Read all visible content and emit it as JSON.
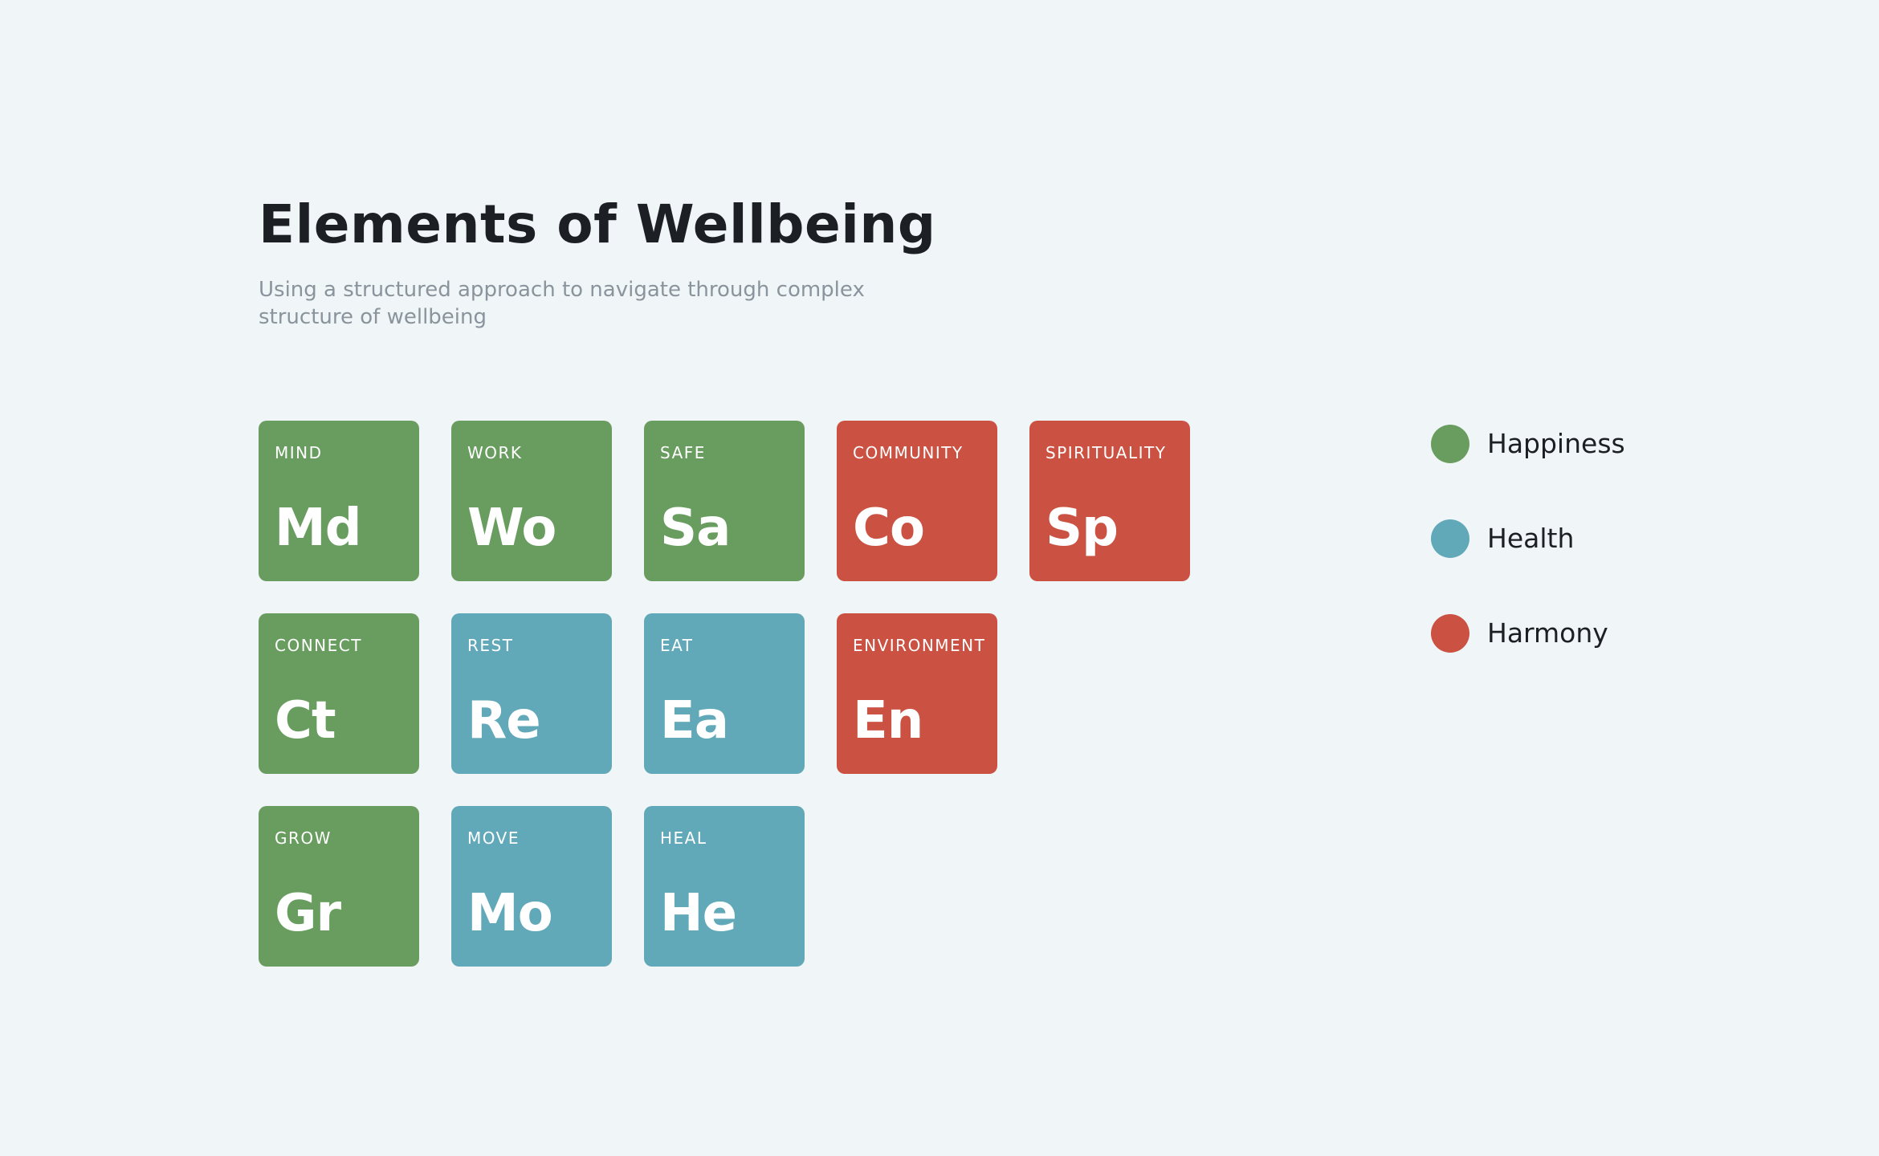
{
  "header": {
    "title": "Elements of Wellbeing",
    "subtitle": "Using a structured approach to navigate through complex structure of wellbeing"
  },
  "categories": {
    "happiness": {
      "label": "Happiness",
      "color": "#689d5f"
    },
    "health": {
      "label": "Health",
      "color": "#61a9b9"
    },
    "harmony": {
      "label": "Harmony",
      "color": "#cb5242"
    }
  },
  "legend": [
    {
      "category": "happiness",
      "label": "Happiness"
    },
    {
      "category": "health",
      "label": "Health"
    },
    {
      "category": "harmony",
      "label": "Harmony"
    }
  ],
  "elements": [
    {
      "name": "MIND",
      "symbol": "Md",
      "category": "happiness",
      "row": 0,
      "col": 0
    },
    {
      "name": "WORK",
      "symbol": "Wo",
      "category": "happiness",
      "row": 0,
      "col": 1
    },
    {
      "name": "SAFE",
      "symbol": "Sa",
      "category": "happiness",
      "row": 0,
      "col": 2
    },
    {
      "name": "COMMUNITY",
      "symbol": "Co",
      "category": "harmony",
      "row": 0,
      "col": 3
    },
    {
      "name": "SPIRITUALITY",
      "symbol": "Sp",
      "category": "harmony",
      "row": 0,
      "col": 4
    },
    {
      "name": "CONNECT",
      "symbol": "Ct",
      "category": "happiness",
      "row": 1,
      "col": 0
    },
    {
      "name": "REST",
      "symbol": "Re",
      "category": "health",
      "row": 1,
      "col": 1
    },
    {
      "name": "EAT",
      "symbol": "Ea",
      "category": "health",
      "row": 1,
      "col": 2
    },
    {
      "name": "ENVIRONMENT",
      "symbol": "En",
      "category": "harmony",
      "row": 1,
      "col": 3
    },
    {
      "name": "GROW",
      "symbol": "Gr",
      "category": "happiness",
      "row": 2,
      "col": 0
    },
    {
      "name": "MOVE",
      "symbol": "Mo",
      "category": "health",
      "row": 2,
      "col": 1
    },
    {
      "name": "HEAL",
      "symbol": "He",
      "category": "health",
      "row": 2,
      "col": 2
    }
  ]
}
